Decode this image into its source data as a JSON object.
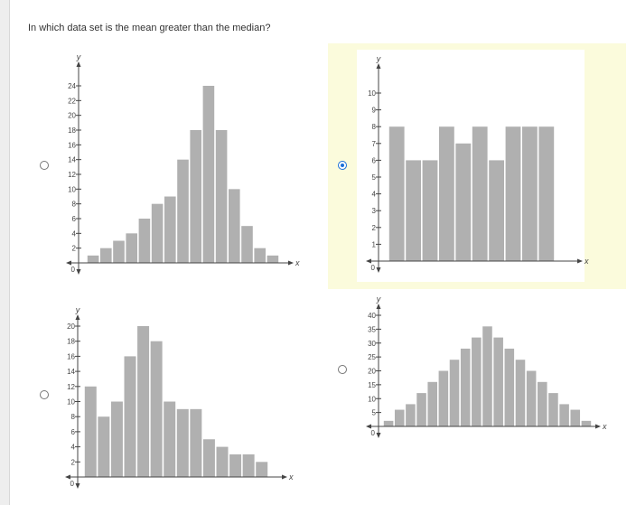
{
  "question": "In which data set is the mean greater than the median?",
  "selected_option": 1,
  "colors": {
    "bar": "#b0b0b0",
    "selected_bg": "#fbfbdc",
    "radio_selected": "#1a6fd8"
  },
  "chart_data": [
    {
      "type": "bar",
      "title": "",
      "xlabel": "x",
      "ylabel": "y",
      "origin_label": "0",
      "ylim": [
        0,
        26
      ],
      "yticks": [
        2,
        4,
        6,
        8,
        10,
        12,
        14,
        16,
        18,
        20,
        22,
        24
      ],
      "values": [
        1,
        2,
        3,
        4,
        6,
        8,
        9,
        14,
        18,
        24,
        18,
        10,
        5,
        2,
        1
      ]
    },
    {
      "type": "bar",
      "title": "",
      "xlabel": "x",
      "ylabel": "y",
      "origin_label": "0",
      "ylim": [
        0,
        11
      ],
      "yticks": [
        1,
        2,
        3,
        4,
        5,
        6,
        7,
        8,
        9,
        10
      ],
      "values": [
        8,
        6,
        6,
        8,
        7,
        8,
        6,
        8,
        8,
        8
      ]
    },
    {
      "type": "bar",
      "title": "",
      "xlabel": "x",
      "ylabel": "y",
      "origin_label": "0",
      "ylim": [
        0,
        21
      ],
      "yticks": [
        2,
        4,
        6,
        8,
        10,
        12,
        14,
        16,
        18,
        20
      ],
      "values": [
        12,
        8,
        10,
        16,
        20,
        18,
        10,
        9,
        9,
        5,
        4,
        3,
        3,
        2
      ]
    },
    {
      "type": "bar",
      "title": "",
      "xlabel": "x",
      "ylabel": "y",
      "origin_label": "0",
      "ylim": [
        0,
        42
      ],
      "yticks": [
        5,
        10,
        15,
        20,
        25,
        30,
        35,
        40
      ],
      "values": [
        2,
        6,
        8,
        12,
        16,
        20,
        24,
        28,
        32,
        36,
        32,
        28,
        24,
        20,
        16,
        12,
        8,
        6,
        2
      ]
    }
  ]
}
